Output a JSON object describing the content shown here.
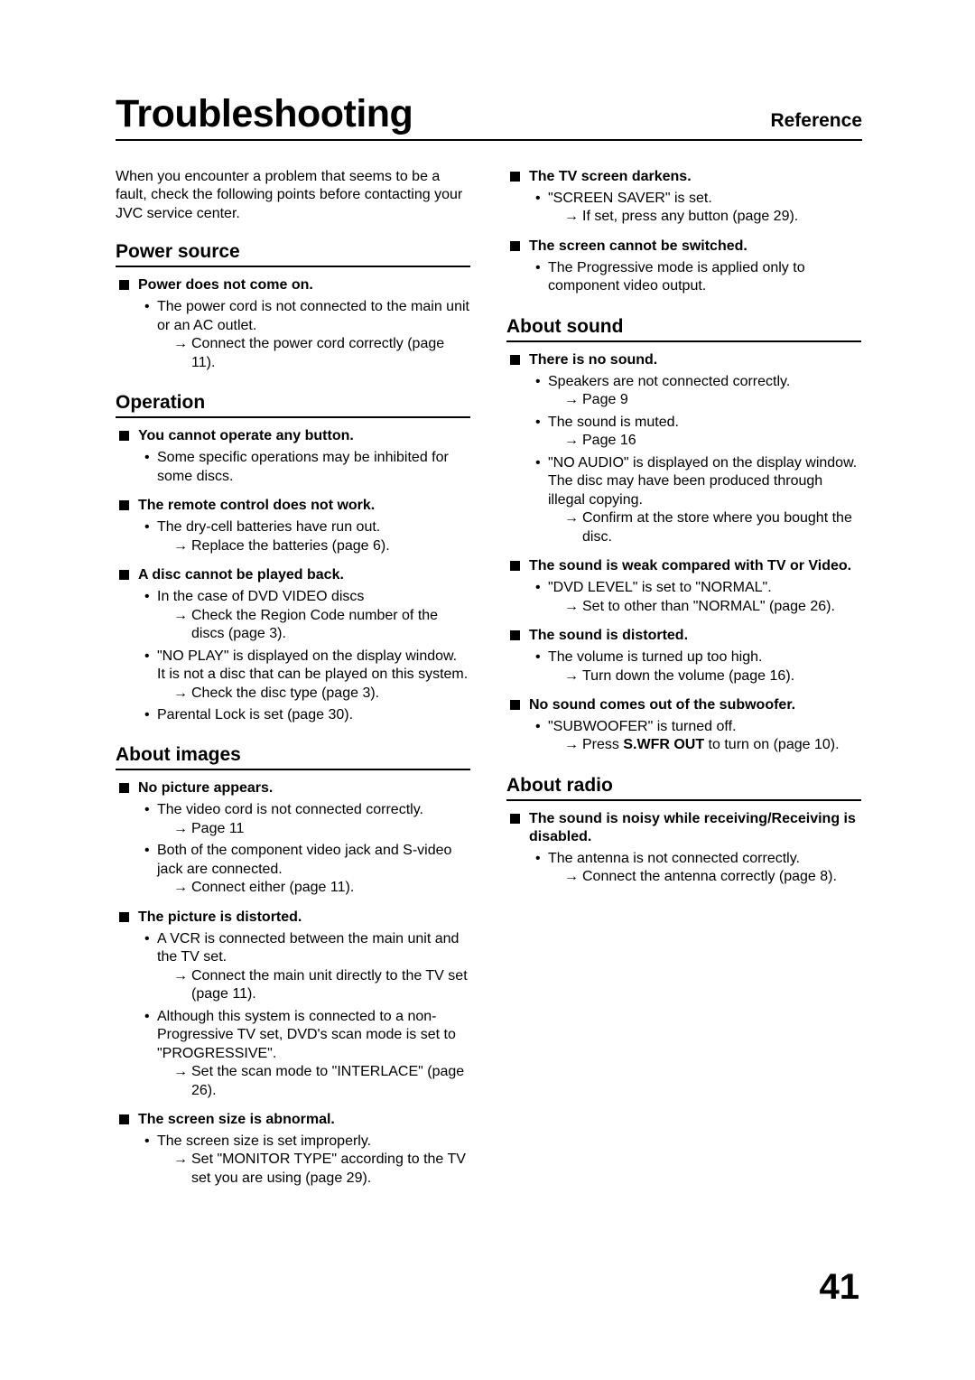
{
  "header": {
    "title": "Troubleshooting",
    "reference": "Reference"
  },
  "intro": "When you encounter a problem that seems to be a fault, check the following points before contacting your JVC service center.",
  "page_number": "41",
  "sections_left": [
    {
      "heading": "Power source",
      "symptoms": [
        {
          "title": "Power does not come on.",
          "bullets": [
            {
              "text": "The power cord is not connected to the main unit or an AC outlet.",
              "actions": [
                "Connect the power cord correctly (page 11)."
              ]
            }
          ]
        }
      ]
    },
    {
      "heading": "Operation",
      "symptoms": [
        {
          "title": "You cannot operate any button.",
          "bullets": [
            {
              "text": "Some specific operations may be inhibited for some discs.",
              "actions": []
            }
          ]
        },
        {
          "title": "The remote control does not work.",
          "bullets": [
            {
              "text": "The dry-cell batteries have run out.",
              "actions": [
                "Replace the batteries (page 6)."
              ]
            }
          ]
        },
        {
          "title": "A disc cannot be played back.",
          "bullets": [
            {
              "text": "In the case of DVD VIDEO discs",
              "actions": [
                "Check the Region Code number of the discs (page 3)."
              ]
            },
            {
              "text": "\"NO PLAY\" is displayed on the display window.\nIt is not a disc that can be played on this system.",
              "actions": [
                "Check the disc type (page 3)."
              ]
            },
            {
              "text": "Parental Lock is set (page 30).",
              "actions": []
            }
          ]
        }
      ]
    },
    {
      "heading": "About images",
      "symptoms": [
        {
          "title": "No picture appears.",
          "bullets": [
            {
              "text": "The video cord is not connected correctly.",
              "actions": [
                "Page 11"
              ]
            },
            {
              "text": "Both of the component video jack and S-video jack are connected.",
              "actions": [
                "Connect either (page 11)."
              ]
            }
          ]
        },
        {
          "title": "The picture is distorted.",
          "bullets": [
            {
              "text": "A VCR is connected between the main unit and the TV set.",
              "actions": [
                "Connect the main unit directly to the TV set (page 11)."
              ]
            },
            {
              "text": "Although this system is connected to a non-Progressive TV set, DVD's scan mode is set to \"PROGRESSIVE\".",
              "actions": [
                "Set the scan mode to \"INTERLACE\" (page 26)."
              ]
            }
          ]
        },
        {
          "title": "The screen size is abnormal.",
          "bullets": [
            {
              "text": "The screen size is set improperly.",
              "actions": [
                "Set \"MONITOR TYPE\" according to the TV set you are using (page 29)."
              ]
            }
          ]
        }
      ]
    }
  ],
  "sections_right": [
    {
      "heading": null,
      "symptoms": [
        {
          "title": "The TV screen darkens.",
          "bullets": [
            {
              "text": "\"SCREEN SAVER\" is set.",
              "actions": [
                "If set, press any button (page 29)."
              ]
            }
          ]
        },
        {
          "title": "The screen cannot be switched.",
          "bullets": [
            {
              "text": "The Progressive mode is applied only to component video output.",
              "actions": []
            }
          ]
        }
      ]
    },
    {
      "heading": "About sound",
      "symptoms": [
        {
          "title": "There is no sound.",
          "bullets": [
            {
              "text": "Speakers are not connected correctly.",
              "actions": [
                "Page 9"
              ]
            },
            {
              "text": "The sound is muted.",
              "actions": [
                "Page 16"
              ]
            },
            {
              "text": "\"NO AUDIO\" is displayed on the display window.\nThe disc may have been produced through illegal copying.",
              "actions": [
                "Confirm at the store where you bought the disc."
              ]
            }
          ]
        },
        {
          "title": "The sound is weak compared with TV or Video.",
          "bullets": [
            {
              "text": "\"DVD LEVEL\" is set to \"NORMAL\".",
              "actions": [
                "Set to other than \"NORMAL\" (page 26)."
              ]
            }
          ]
        },
        {
          "title": "The sound is distorted.",
          "bullets": [
            {
              "text": "The volume is turned up too high.",
              "actions": [
                "Turn down the volume (page 16)."
              ]
            }
          ]
        },
        {
          "title": "No sound comes out of the subwoofer.",
          "bullets": [
            {
              "text": "\"SUBWOOFER\" is turned off.",
              "actions_html": "Press <span class=\"bold\">S.WFR OUT</span> to turn on (page 10)."
            }
          ]
        }
      ]
    },
    {
      "heading": "About radio",
      "symptoms": [
        {
          "title": "The sound is noisy while receiving/Receiving is disabled.",
          "bullets": [
            {
              "text": "The antenna is not connected correctly.",
              "actions": [
                "Connect the antenna correctly (page 8)."
              ]
            }
          ]
        }
      ]
    }
  ]
}
